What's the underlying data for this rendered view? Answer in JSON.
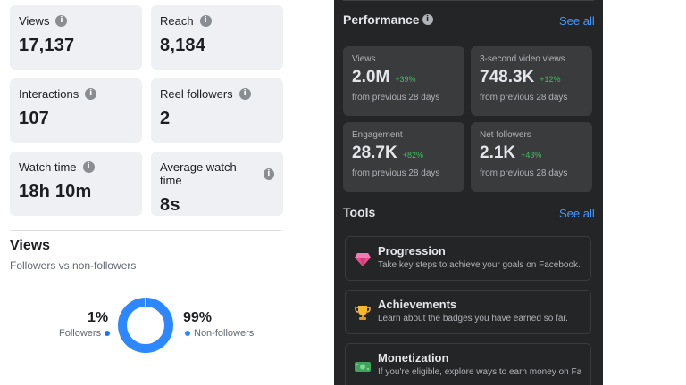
{
  "left": {
    "cards": [
      {
        "label": "Views",
        "value": "17,137"
      },
      {
        "label": "Reach",
        "value": "8,184"
      },
      {
        "label": "Interactions",
        "value": "107"
      },
      {
        "label": "Reel followers",
        "value": "2"
      },
      {
        "label": "Watch time",
        "value": "18h 10m"
      },
      {
        "label": "Average watch time",
        "value": "8s"
      }
    ],
    "views_section": {
      "title": "Views",
      "subtitle": "Followers vs non-followers",
      "followers_pct": "1%",
      "followers_label": "Followers",
      "nonfollowers_pct": "99%",
      "nonfollowers_label": "Non-followers",
      "followers_share": 0.01,
      "followers_color": "#1877f2",
      "nonfollowers_color": "#2d88ff"
    }
  },
  "right": {
    "performance": {
      "title": "Performance",
      "see_all": "See all",
      "cards": [
        {
          "label": "Views",
          "value": "2.0M",
          "change": "+39%",
          "note": "from previous 28 days"
        },
        {
          "label": "3-second video views",
          "value": "748.3K",
          "change": "+12%",
          "note": "from previous 28 days"
        },
        {
          "label": "Engagement",
          "value": "28.7K",
          "change": "+82%",
          "note": "from previous 28 days"
        },
        {
          "label": "Net followers",
          "value": "2.1K",
          "change": "+43%",
          "note": "from previous 28 days"
        }
      ]
    },
    "tools": {
      "title": "Tools",
      "see_all": "See all",
      "items": [
        {
          "name": "Progression",
          "desc": "Take key steps to achieve your goals on Facebook.",
          "icon": "diamond-icon"
        },
        {
          "name": "Achievements",
          "desc": "Learn about the badges you have earned so far.",
          "icon": "trophy-icon"
        },
        {
          "name": "Monetization",
          "desc": "If you're eligible, explore ways to earn money on Facebook.",
          "icon": "money-icon"
        }
      ]
    }
  },
  "colors": {
    "accent_link": "#4599ff",
    "positive": "#45bd62",
    "dark_bg": "#242526",
    "dark_card": "#3a3b3c"
  }
}
